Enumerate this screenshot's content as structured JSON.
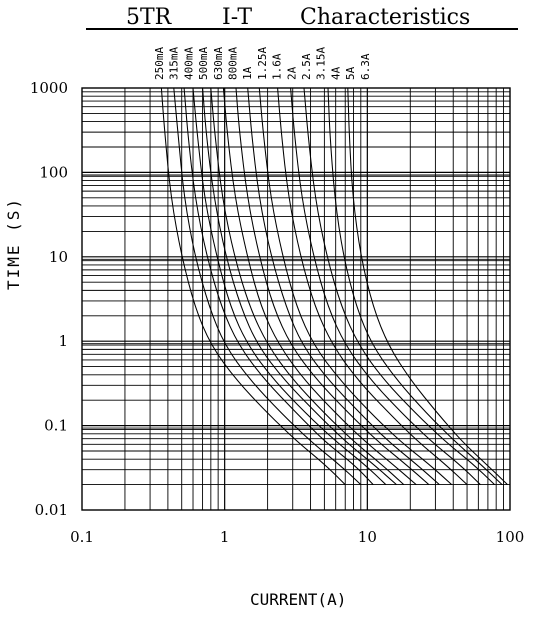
{
  "chart_data": {
    "type": "line",
    "title_parts": [
      "5TR",
      "I-T",
      "Characteristics"
    ],
    "xlabel": "CURRENT(A)",
    "ylabel": "TIME (S)",
    "x_scale": "log",
    "y_scale": "log",
    "xlim": [
      0.1,
      100
    ],
    "ylim": [
      0.01,
      1000
    ],
    "x_tick_labels": [
      "0.1",
      "1",
      "10",
      "100"
    ],
    "y_tick_labels": [
      "1000",
      "100",
      "10",
      "1",
      "0.1",
      "0.01"
    ],
    "grid": true,
    "legend": "top (rotated series names above plot)",
    "line_color": "#000000",
    "series": [
      {
        "name": "250mA",
        "points": [
          [
            0.36,
            1000
          ],
          [
            0.38,
            300
          ],
          [
            0.42,
            50
          ],
          [
            0.5,
            10
          ],
          [
            0.62,
            2.5
          ],
          [
            0.8,
            0.9
          ],
          [
            1.2,
            0.35
          ],
          [
            2.0,
            0.14
          ],
          [
            3.2,
            0.065
          ],
          [
            5.0,
            0.035
          ],
          [
            7.0,
            0.02
          ]
        ]
      },
      {
        "name": "315mA",
        "points": [
          [
            0.44,
            1000
          ],
          [
            0.47,
            300
          ],
          [
            0.52,
            50
          ],
          [
            0.62,
            10
          ],
          [
            0.78,
            2.5
          ],
          [
            1.0,
            0.9
          ],
          [
            1.5,
            0.35
          ],
          [
            2.5,
            0.14
          ],
          [
            4.0,
            0.065
          ],
          [
            6.3,
            0.035
          ],
          [
            9.0,
            0.02
          ]
        ]
      },
      {
        "name": "400mA",
        "points": [
          [
            0.52,
            1000
          ],
          [
            0.55,
            300
          ],
          [
            0.62,
            50
          ],
          [
            0.75,
            10
          ],
          [
            0.95,
            2.5
          ],
          [
            1.25,
            0.9
          ],
          [
            1.9,
            0.35
          ],
          [
            3.2,
            0.14
          ],
          [
            5.0,
            0.065
          ],
          [
            8.0,
            0.035
          ],
          [
            11.0,
            0.02
          ]
        ]
      },
      {
        "name": "500mA",
        "points": [
          [
            0.6,
            1000
          ],
          [
            0.64,
            300
          ],
          [
            0.72,
            50
          ],
          [
            0.88,
            10
          ],
          [
            1.1,
            2.5
          ],
          [
            1.45,
            0.9
          ],
          [
            2.2,
            0.35
          ],
          [
            3.7,
            0.14
          ],
          [
            6.0,
            0.065
          ],
          [
            9.5,
            0.035
          ],
          [
            13.5,
            0.02
          ]
        ]
      },
      {
        "name": "630mA",
        "points": [
          [
            0.7,
            1000
          ],
          [
            0.74,
            300
          ],
          [
            0.84,
            50
          ],
          [
            1.02,
            10
          ],
          [
            1.3,
            2.5
          ],
          [
            1.7,
            0.9
          ],
          [
            2.6,
            0.35
          ],
          [
            4.4,
            0.14
          ],
          [
            7.0,
            0.065
          ],
          [
            11.0,
            0.035
          ],
          [
            16.0,
            0.02
          ]
        ]
      },
      {
        "name": "800mA",
        "points": [
          [
            0.8,
            1000
          ],
          [
            0.85,
            300
          ],
          [
            0.96,
            50
          ],
          [
            1.17,
            10
          ],
          [
            1.5,
            2.5
          ],
          [
            2.0,
            0.9
          ],
          [
            3.0,
            0.35
          ],
          [
            5.0,
            0.14
          ],
          [
            8.0,
            0.065
          ],
          [
            12.5,
            0.035
          ],
          [
            18.0,
            0.02
          ]
        ]
      },
      {
        "name": "1A",
        "points": [
          [
            0.98,
            1000
          ],
          [
            1.04,
            300
          ],
          [
            1.18,
            50
          ],
          [
            1.44,
            10
          ],
          [
            1.8,
            2.5
          ],
          [
            2.4,
            0.9
          ],
          [
            3.6,
            0.35
          ],
          [
            6.0,
            0.14
          ],
          [
            9.6,
            0.065
          ],
          [
            15.0,
            0.035
          ],
          [
            22.0,
            0.02
          ]
        ]
      },
      {
        "name": "1.25A",
        "points": [
          [
            1.2,
            1000
          ],
          [
            1.27,
            300
          ],
          [
            1.44,
            50
          ],
          [
            1.75,
            10
          ],
          [
            2.2,
            2.5
          ],
          [
            2.9,
            0.9
          ],
          [
            4.4,
            0.35
          ],
          [
            7.4,
            0.14
          ],
          [
            11.8,
            0.065
          ],
          [
            18.5,
            0.035
          ],
          [
            27.0,
            0.02
          ]
        ]
      },
      {
        "name": "1.6A",
        "points": [
          [
            1.45,
            1000
          ],
          [
            1.54,
            300
          ],
          [
            1.74,
            50
          ],
          [
            2.12,
            10
          ],
          [
            2.7,
            2.5
          ],
          [
            3.5,
            0.9
          ],
          [
            5.3,
            0.35
          ],
          [
            8.9,
            0.14
          ],
          [
            14.0,
            0.065
          ],
          [
            22.0,
            0.035
          ],
          [
            32.0,
            0.02
          ]
        ]
      },
      {
        "name": "2A",
        "points": [
          [
            1.75,
            1000
          ],
          [
            1.86,
            300
          ],
          [
            2.1,
            50
          ],
          [
            2.55,
            10
          ],
          [
            3.2,
            2.5
          ],
          [
            4.2,
            0.9
          ],
          [
            6.4,
            0.35
          ],
          [
            10.6,
            0.14
          ],
          [
            17.0,
            0.065
          ],
          [
            27.0,
            0.035
          ],
          [
            39.0,
            0.02
          ]
        ]
      },
      {
        "name": "2.5A",
        "points": [
          [
            2.35,
            1000
          ],
          [
            2.49,
            300
          ],
          [
            2.8,
            50
          ],
          [
            3.4,
            10
          ],
          [
            4.3,
            2.5
          ],
          [
            5.7,
            0.9
          ],
          [
            8.5,
            0.35
          ],
          [
            14.2,
            0.14
          ],
          [
            22.5,
            0.065
          ],
          [
            35.0,
            0.035
          ],
          [
            50.0,
            0.02
          ]
        ]
      },
      {
        "name": "3.15A",
        "points": [
          [
            2.9,
            1000
          ],
          [
            3.07,
            300
          ],
          [
            3.46,
            50
          ],
          [
            4.2,
            10
          ],
          [
            5.3,
            2.5
          ],
          [
            7.0,
            0.9
          ],
          [
            10.5,
            0.35
          ],
          [
            17.5,
            0.14
          ],
          [
            28.0,
            0.065
          ],
          [
            44.0,
            0.035
          ],
          [
            62.0,
            0.02
          ]
        ]
      },
      {
        "name": "4A",
        "points": [
          [
            3.6,
            1000
          ],
          [
            3.82,
            300
          ],
          [
            4.3,
            50
          ],
          [
            5.2,
            10
          ],
          [
            6.6,
            2.5
          ],
          [
            8.7,
            0.9
          ],
          [
            13.0,
            0.35
          ],
          [
            21.8,
            0.14
          ],
          [
            35.0,
            0.065
          ],
          [
            55.0,
            0.035
          ],
          [
            78.0,
            0.02
          ]
        ]
      },
      {
        "name": "5A",
        "points": [
          [
            5.3,
            1000
          ],
          [
            5.45,
            300
          ],
          [
            5.9,
            50
          ],
          [
            6.8,
            10
          ],
          [
            8.4,
            2.5
          ],
          [
            10.8,
            0.9
          ],
          [
            16.0,
            0.35
          ],
          [
            26.0,
            0.14
          ],
          [
            41.0,
            0.065
          ],
          [
            62.0,
            0.035
          ],
          [
            88.0,
            0.02
          ]
        ]
      },
      {
        "name": "6.3A",
        "points": [
          [
            7.3,
            1000
          ],
          [
            7.45,
            300
          ],
          [
            7.9,
            50
          ],
          [
            9.0,
            10
          ],
          [
            11.0,
            2.5
          ],
          [
            14.0,
            0.9
          ],
          [
            20.0,
            0.35
          ],
          [
            31.0,
            0.14
          ],
          [
            46.0,
            0.065
          ],
          [
            68.0,
            0.035
          ],
          [
            96.0,
            0.02
          ]
        ]
      }
    ]
  }
}
